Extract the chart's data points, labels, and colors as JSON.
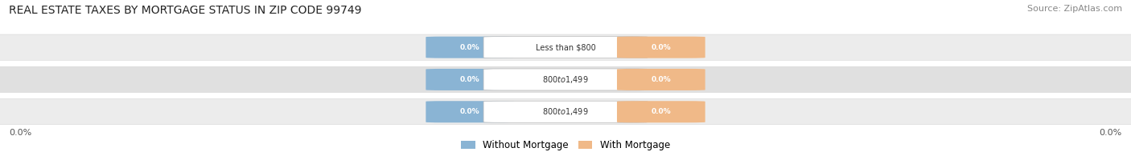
{
  "title": "REAL ESTATE TAXES BY MORTGAGE STATUS IN ZIP CODE 99749",
  "source": "Source: ZipAtlas.com",
  "categories": [
    "Less than $800",
    "$800 to $1,499",
    "$800 to $1,499"
  ],
  "without_mortgage": [
    0.0,
    0.0,
    0.0
  ],
  "with_mortgage": [
    0.0,
    0.0,
    0.0
  ],
  "bar_color_without": "#8ab4d4",
  "bar_color_with": "#f0b988",
  "bar_bg_light": "#ececec",
  "bar_bg_dark": "#e0e0e0",
  "title_fontsize": 10,
  "source_fontsize": 8,
  "legend_label_without": "Without Mortgage",
  "legend_label_with": "With Mortgage",
  "x_left_label": "0.0%",
  "x_right_label": "0.0%",
  "figwidth": 14.06,
  "figheight": 1.95,
  "dpi": 100
}
